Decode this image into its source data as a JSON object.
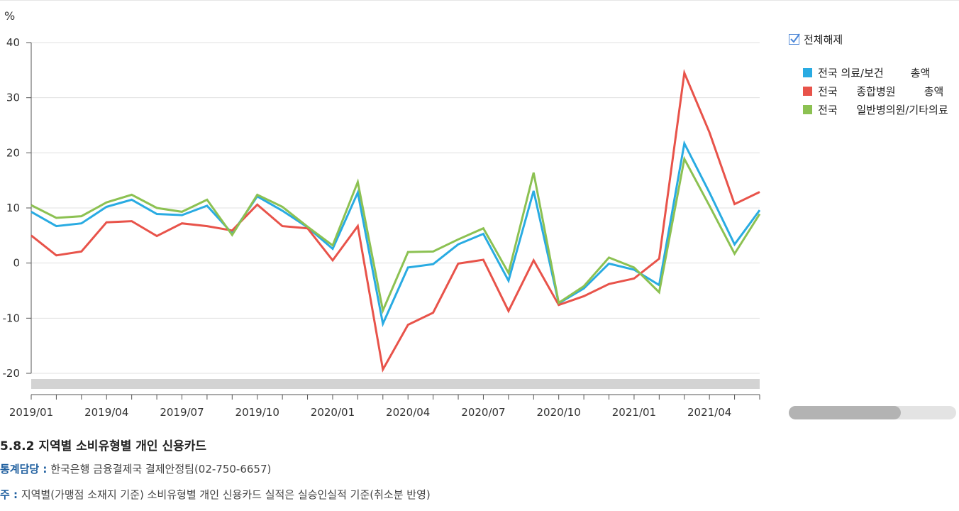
{
  "chart_data": {
    "type": "line",
    "ylabel": "%",
    "ylim": [
      -20,
      40
    ],
    "yticks": [
      40,
      30,
      20,
      10,
      0,
      -10,
      -20
    ],
    "grid": true,
    "legend_position": "right",
    "x": [
      "2019/01",
      "2019/02",
      "2019/03",
      "2019/04",
      "2019/05",
      "2019/06",
      "2019/07",
      "2019/08",
      "2019/09",
      "2019/10",
      "2019/11",
      "2019/12",
      "2020/01",
      "2020/02",
      "2020/03",
      "2020/04",
      "2020/05",
      "2020/06",
      "2020/07",
      "2020/08",
      "2020/09",
      "2020/10",
      "2020/11",
      "2020/12",
      "2021/01",
      "2021/02",
      "2021/03",
      "2021/04",
      "2021/05",
      "2021/06"
    ],
    "xtick_labels": [
      "2019/01",
      "2019/04",
      "2019/07",
      "2019/10",
      "2020/01",
      "2020/04",
      "2020/07",
      "2020/10",
      "2021/01",
      "2021/04"
    ],
    "series": [
      {
        "name": "전국 의료/보건\t\t총액",
        "color": "#29abe2",
        "values": [
          9.3,
          6.7,
          7.2,
          10.2,
          11.5,
          8.9,
          8.7,
          10.4,
          5.4,
          12.1,
          9.5,
          6.5,
          2.6,
          12.8,
          -11.0,
          -0.8,
          -0.2,
          3.4,
          5.3,
          -3.2,
          13.1,
          -7.3,
          -4.6,
          -0.1,
          -1.2,
          -4.0,
          21.7,
          12.8,
          3.4,
          9.6
        ]
      },
      {
        "name": "전국\t\t종합병원\t\t총액",
        "color": "#e8534a",
        "values": [
          5.0,
          1.4,
          2.1,
          7.4,
          7.6,
          4.9,
          7.2,
          6.7,
          5.9,
          10.6,
          6.7,
          6.3,
          0.5,
          6.7,
          -19.3,
          -11.2,
          -9.0,
          -0.1,
          0.6,
          -8.7,
          0.5,
          -7.6,
          -6.0,
          -3.8,
          -2.8,
          0.8,
          34.5,
          23.7,
          10.7,
          12.9
        ]
      },
      {
        "name": "전국\t\t일반병의원/기타의료",
        "color": "#8cc152",
        "values": [
          10.5,
          8.2,
          8.5,
          11.0,
          12.4,
          10.0,
          9.3,
          11.5,
          5.1,
          12.4,
          10.2,
          6.6,
          3.2,
          14.7,
          -8.6,
          2.0,
          2.1,
          4.3,
          6.3,
          -1.8,
          16.4,
          -7.2,
          -4.2,
          1.0,
          -0.8,
          -5.3,
          18.9,
          10.4,
          1.7,
          8.9
        ]
      }
    ]
  },
  "legend": {
    "toggle_label": "전체해제",
    "items": [
      "전국 의료/보건\t\t총액",
      "전국\t\t종합병원\t\t총액",
      "전국\t\t일반병의원/기타의료"
    ]
  },
  "footer": {
    "title": "5.8.2 지역별 소비유형별 개인 신용카드",
    "contact_label": "통계담당 :",
    "contact_value": "한국은행 금융결제국 결제안정팀(02-750-6657)",
    "note_label": "주 :",
    "note_value": "지역별(가맹점 소재지 기준) 소비유형별 개인 신용카드 실적은 실승인실적 기준(취소분 반영)"
  }
}
